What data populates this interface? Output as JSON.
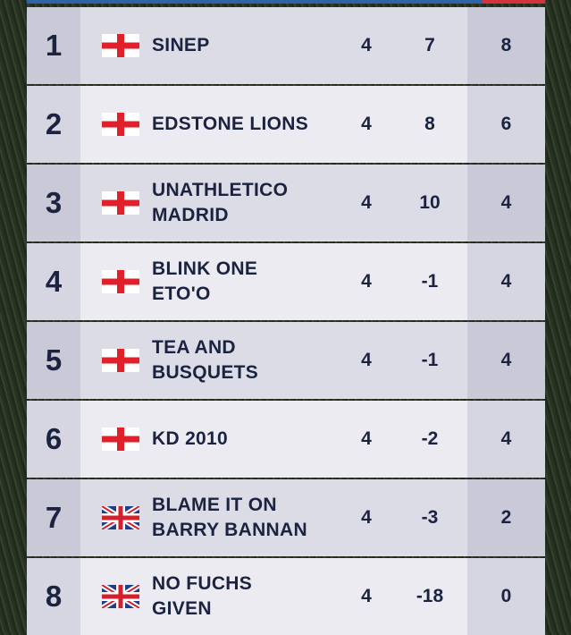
{
  "table": {
    "rows": [
      {
        "position": "1",
        "name": [
          "SINEP"
        ],
        "played": "4",
        "goal_difference": "7",
        "points": "8"
      },
      {
        "position": "2",
        "name": [
          "EDSTONE LIONS"
        ],
        "played": "4",
        "goal_difference": "8",
        "points": "6"
      },
      {
        "position": "3",
        "name": [
          "UNATHLETICO",
          "MADRID"
        ],
        "played": "4",
        "goal_difference": "10",
        "points": "4"
      },
      {
        "position": "4",
        "name": [
          "BLINK ONE",
          "ETO'O"
        ],
        "played": "4",
        "goal_difference": "-1",
        "points": "4"
      },
      {
        "position": "5",
        "name": [
          "TEA AND",
          "BUSQUETS"
        ],
        "played": "4",
        "goal_difference": "-1",
        "points": "4"
      },
      {
        "position": "6",
        "name": [
          "KD 2010"
        ],
        "played": "4",
        "goal_difference": "-2",
        "points": "4"
      },
      {
        "position": "7",
        "name": [
          "BLAME IT ON",
          "BARRY BANNAN"
        ],
        "played": "4",
        "goal_difference": "-3",
        "points": "2"
      },
      {
        "position": "8",
        "name": [
          "NO FUCHS",
          "GIVEN"
        ],
        "played": "4",
        "goal_difference": "-18",
        "points": "0"
      }
    ]
  }
}
